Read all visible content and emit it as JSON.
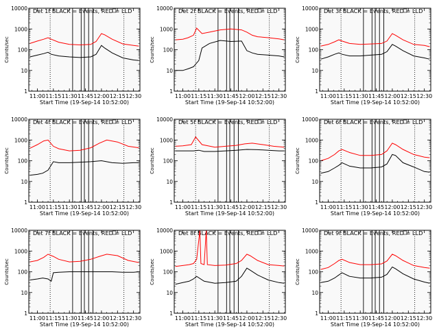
{
  "figure": {
    "ylabel": "Counts/sec",
    "xlabel": "Start Time (19-Sep-14 10:52:00)",
    "x_ticks": [
      "11:00",
      "11:15",
      "11:30",
      "11:45",
      "12:00",
      "12:15",
      "12:30"
    ],
    "y_ticks": [
      "1",
      "10",
      "100",
      "1000",
      "10000"
    ],
    "colors": {
      "events": "#000000",
      "lld": "#ff0000",
      "vlines": "#000000"
    }
  },
  "chart_data": [
    {
      "type": "line",
      "title": "Det 1f BLACK = Events, RED = LLD",
      "xlabel": "Start Time (19-Sep-14 10:52:00)",
      "ylabel": "Counts/sec",
      "x_range": [
        "10:52",
        "12:36"
      ],
      "ylim": [
        1,
        10000
      ],
      "log_y": true,
      "grid": false,
      "vertical_lines_solid": [
        "11:33",
        "11:41",
        "11:44",
        "11:48",
        "11:52"
      ],
      "vertical_lines_dotted": [
        "11:12",
        "12:21"
      ],
      "series": [
        {
          "name": "Events",
          "x": [
            "10:53",
            "11:00",
            "11:06",
            "11:10",
            "11:13",
            "11:20",
            "11:30",
            "11:40",
            "11:50",
            "11:55",
            "12:00",
            "12:03",
            "12:10",
            "12:20",
            "12:30",
            "12:35"
          ],
          "values": [
            45,
            55,
            65,
            75,
            60,
            50,
            45,
            42,
            45,
            60,
            160,
            120,
            70,
            40,
            32,
            30
          ]
        },
        {
          "name": "LLD",
          "x": [
            "10:53",
            "11:00",
            "11:06",
            "11:10",
            "11:13",
            "11:20",
            "11:30",
            "11:40",
            "11:50",
            "11:55",
            "12:00",
            "12:03",
            "12:10",
            "12:20",
            "12:30",
            "12:35"
          ],
          "values": [
            200,
            260,
            320,
            380,
            320,
            230,
            180,
            170,
            180,
            250,
            600,
            520,
            320,
            190,
            160,
            150
          ]
        }
      ]
    },
    {
      "type": "line",
      "title": "Det 2f BLACK = Events, RED = LLD",
      "xlabel": "Start Time (19-Sep-14 10:52:00)",
      "ylabel": "Counts/sec",
      "x_range": [
        "10:52",
        "12:36"
      ],
      "ylim": [
        1,
        10000
      ],
      "log_y": true,
      "grid": false,
      "vertical_lines_solid": [
        "11:33",
        "11:41",
        "11:44",
        "11:48",
        "11:52"
      ],
      "vertical_lines_dotted": [
        "11:12",
        "12:21"
      ],
      "series": [
        {
          "name": "Events",
          "x": [
            "10:53",
            "11:00",
            "11:05",
            "11:10",
            "11:15",
            "11:18",
            "11:25",
            "11:35",
            "11:45",
            "11:55",
            "12:00",
            "12:05",
            "12:10",
            "12:20",
            "12:30",
            "12:35"
          ],
          "values": [
            10,
            10,
            12,
            15,
            30,
            120,
            200,
            280,
            250,
            260,
            90,
            70,
            60,
            55,
            50,
            45
          ]
        },
        {
          "name": "LLD",
          "x": [
            "10:53",
            "11:00",
            "11:05",
            "11:10",
            "11:13",
            "11:18",
            "11:25",
            "11:35",
            "11:45",
            "11:55",
            "12:00",
            "12:05",
            "12:10",
            "12:20",
            "12:30",
            "12:35"
          ],
          "values": [
            300,
            320,
            380,
            500,
            1100,
            600,
            700,
            900,
            1000,
            900,
            700,
            500,
            420,
            380,
            330,
            300
          ]
        }
      ]
    },
    {
      "type": "line",
      "title": "Det 3f BLACK = Events, RED = LLD",
      "xlabel": "Start Time (19-Sep-14 10:52:00)",
      "ylabel": "Counts/sec",
      "x_range": [
        "10:52",
        "12:36"
      ],
      "ylim": [
        1,
        10000
      ],
      "log_y": true,
      "grid": false,
      "vertical_lines_solid": [
        "11:33",
        "11:41",
        "11:44",
        "11:48",
        "11:52"
      ],
      "vertical_lines_dotted": [
        "11:12",
        "12:21"
      ],
      "series": [
        {
          "name": "Events",
          "x": [
            "10:53",
            "11:00",
            "11:06",
            "11:10",
            "11:13",
            "11:20",
            "11:30",
            "11:40",
            "11:50",
            "11:55",
            "12:00",
            "12:03",
            "12:10",
            "12:20",
            "12:30",
            "12:35"
          ],
          "values": [
            35,
            45,
            60,
            70,
            60,
            50,
            50,
            55,
            60,
            80,
            180,
            150,
            90,
            50,
            40,
            35
          ]
        },
        {
          "name": "LLD",
          "x": [
            "10:53",
            "11:00",
            "11:06",
            "11:10",
            "11:13",
            "11:20",
            "11:30",
            "11:40",
            "11:50",
            "11:55",
            "12:00",
            "12:03",
            "12:10",
            "12:20",
            "12:30",
            "12:35"
          ],
          "values": [
            150,
            180,
            240,
            300,
            260,
            200,
            180,
            190,
            200,
            260,
            600,
            500,
            300,
            180,
            160,
            140
          ]
        }
      ]
    },
    {
      "type": "line",
      "title": "Det 4f BLACK = Events, RED = LLD",
      "xlabel": "Start Time (19-Sep-14 10:52:00)",
      "ylabel": "Counts/sec",
      "x_range": [
        "10:52",
        "12:36"
      ],
      "ylim": [
        1,
        10000
      ],
      "log_y": true,
      "grid": false,
      "vertical_lines_solid": [
        "11:33",
        "11:41",
        "11:44",
        "11:48",
        "11:52"
      ],
      "vertical_lines_dotted": [
        "11:12",
        "12:21"
      ],
      "series": [
        {
          "name": "Events",
          "x": [
            "10:53",
            "11:00",
            "11:05",
            "11:10",
            "11:15",
            "11:20",
            "11:30",
            "11:40",
            "11:50",
            "12:00",
            "12:10",
            "12:20",
            "12:30",
            "12:35"
          ],
          "values": [
            20,
            22,
            25,
            35,
            90,
            80,
            80,
            85,
            90,
            100,
            80,
            75,
            80,
            80
          ]
        },
        {
          "name": "LLD",
          "x": [
            "10:53",
            "11:00",
            "11:06",
            "11:10",
            "11:15",
            "11:20",
            "11:30",
            "11:40",
            "11:50",
            "11:58",
            "12:05",
            "12:15",
            "12:25",
            "12:35"
          ],
          "values": [
            400,
            600,
            900,
            1000,
            500,
            380,
            300,
            320,
            420,
            700,
            1000,
            800,
            500,
            420
          ]
        }
      ]
    },
    {
      "type": "line",
      "title": "Det 5f BLACK = Events, RED = LLD",
      "xlabel": "Start Time (19-Sep-14 10:52:00)",
      "ylabel": "Counts/sec",
      "x_range": [
        "10:52",
        "12:36"
      ],
      "ylim": [
        1,
        10000
      ],
      "log_y": true,
      "grid": false,
      "vertical_lines_solid": [
        "11:33",
        "11:41",
        "11:44",
        "11:48",
        "11:52"
      ],
      "vertical_lines_dotted": [
        "11:12",
        "12:21"
      ],
      "series": [
        {
          "name": "Events",
          "x": [
            "10:53",
            "11:00",
            "11:10",
            "11:15",
            "11:20",
            "11:30",
            "11:40",
            "11:50",
            "12:00",
            "12:10",
            "12:20",
            "12:30",
            "12:35"
          ],
          "values": [
            300,
            300,
            300,
            320,
            280,
            280,
            300,
            320,
            350,
            340,
            320,
            300,
            300
          ]
        },
        {
          "name": "LLD",
          "x": [
            "10:53",
            "11:00",
            "11:08",
            "11:12",
            "11:18",
            "11:30",
            "11:40",
            "11:50",
            "11:58",
            "12:05",
            "12:15",
            "12:25",
            "12:35"
          ],
          "values": [
            500,
            520,
            600,
            1400,
            600,
            450,
            500,
            550,
            650,
            700,
            600,
            500,
            450
          ]
        }
      ]
    },
    {
      "type": "line",
      "title": "Det 6f BLACK = Events, RED = LLD",
      "xlabel": "Start Time (19-Sep-14 10:52:00)",
      "ylabel": "Counts/sec",
      "x_range": [
        "10:52",
        "12:36"
      ],
      "ylim": [
        1,
        10000
      ],
      "log_y": true,
      "grid": false,
      "vertical_lines_solid": [
        "11:33",
        "11:41",
        "11:44",
        "11:48",
        "11:52"
      ],
      "vertical_lines_dotted": [
        "11:12",
        "12:21"
      ],
      "series": [
        {
          "name": "Events",
          "x": [
            "10:53",
            "11:00",
            "11:06",
            "11:10",
            "11:13",
            "11:20",
            "11:30",
            "11:40",
            "11:50",
            "11:55",
            "12:00",
            "12:03",
            "12:10",
            "12:20",
            "12:30",
            "12:35"
          ],
          "values": [
            25,
            30,
            45,
            60,
            80,
            55,
            45,
            45,
            50,
            70,
            200,
            180,
            80,
            50,
            30,
            28
          ]
        },
        {
          "name": "LLD",
          "x": [
            "10:53",
            "11:00",
            "11:06",
            "11:10",
            "11:13",
            "11:20",
            "11:30",
            "11:40",
            "11:50",
            "11:55",
            "12:00",
            "12:03",
            "12:10",
            "12:20",
            "12:30",
            "12:35"
          ],
          "values": [
            100,
            130,
            200,
            300,
            350,
            250,
            180,
            180,
            200,
            300,
            700,
            600,
            350,
            200,
            150,
            140
          ]
        }
      ]
    },
    {
      "type": "line",
      "title": "Det 7f BLACK = Events, RED = LLD",
      "xlabel": "Start Time (19-Sep-14 10:52:00)",
      "ylabel": "Counts/sec",
      "x_range": [
        "10:52",
        "12:36"
      ],
      "ylim": [
        1,
        10000
      ],
      "log_y": true,
      "grid": false,
      "vertical_lines_solid": [
        "11:33",
        "11:41",
        "11:44",
        "11:48",
        "11:52"
      ],
      "vertical_lines_dotted": [
        "11:12",
        "12:21"
      ],
      "series": [
        {
          "name": "Events",
          "x": [
            "10:53",
            "11:00",
            "11:05",
            "11:10",
            "11:13",
            "11:15",
            "11:20",
            "11:30",
            "11:40",
            "11:50",
            "12:00",
            "12:10",
            "12:20",
            "12:30",
            "12:35"
          ],
          "values": [
            40,
            45,
            50,
            45,
            35,
            90,
            95,
            100,
            100,
            100,
            100,
            100,
            95,
            95,
            100
          ]
        },
        {
          "name": "LLD",
          "x": [
            "10:53",
            "11:00",
            "11:06",
            "11:10",
            "11:15",
            "11:20",
            "11:30",
            "11:40",
            "11:50",
            "11:58",
            "12:05",
            "12:15",
            "12:25",
            "12:35"
          ],
          "values": [
            300,
            350,
            500,
            700,
            550,
            400,
            300,
            320,
            400,
            550,
            700,
            600,
            350,
            280
          ]
        }
      ]
    },
    {
      "type": "line",
      "title": "Det 8f BLACK = Events, RED = LLD",
      "xlabel": "Start Time (19-Sep-14 10:52:00)",
      "ylabel": "Counts/sec",
      "x_range": [
        "10:52",
        "12:36"
      ],
      "ylim": [
        1,
        10000
      ],
      "log_y": true,
      "grid": false,
      "vertical_lines_solid": [
        "11:33",
        "11:41",
        "11:44",
        "11:48",
        "11:52"
      ],
      "vertical_lines_dotted": [
        "11:12",
        "12:21"
      ],
      "series": [
        {
          "name": "Events",
          "x": [
            "10:53",
            "11:00",
            "11:06",
            "11:10",
            "11:13",
            "11:20",
            "11:30",
            "11:40",
            "11:50",
            "11:55",
            "12:00",
            "12:03",
            "12:10",
            "12:20",
            "12:30",
            "12:35"
          ],
          "values": [
            25,
            30,
            35,
            45,
            60,
            35,
            28,
            30,
            35,
            60,
            150,
            120,
            70,
            40,
            30,
            28
          ]
        },
        {
          "name": "LLD",
          "x": [
            "10:53",
            "11:00",
            "11:06",
            "11:10",
            "11:13",
            "11:16",
            "11:17",
            "11:20",
            "11:22",
            "11:23",
            "11:30",
            "11:40",
            "11:50",
            "11:55",
            "12:00",
            "12:03",
            "12:10",
            "12:20",
            "12:30",
            "12:35"
          ],
          "values": [
            180,
            200,
            220,
            250,
            400,
            10000,
            250,
            220,
            10000,
            220,
            200,
            210,
            250,
            350,
            700,
            600,
            350,
            220,
            200,
            190
          ]
        }
      ]
    },
    {
      "type": "line",
      "title": "Det 9f BLACK = Events, RED = LLD",
      "xlabel": "Start Time (19-Sep-14 10:52:00)",
      "ylabel": "Counts/sec",
      "x_range": [
        "10:52",
        "12:36"
      ],
      "ylim": [
        1,
        10000
      ],
      "log_y": true,
      "grid": false,
      "vertical_lines_solid": [
        "11:33",
        "11:41",
        "11:44",
        "11:48",
        "11:52"
      ],
      "vertical_lines_dotted": [
        "11:12",
        "12:21"
      ],
      "series": [
        {
          "name": "Events",
          "x": [
            "10:53",
            "11:00",
            "11:06",
            "11:10",
            "11:13",
            "11:20",
            "11:30",
            "11:40",
            "11:50",
            "11:55",
            "12:00",
            "12:03",
            "12:10",
            "12:20",
            "12:30",
            "12:35"
          ],
          "values": [
            30,
            35,
            50,
            70,
            90,
            60,
            50,
            50,
            55,
            75,
            170,
            140,
            80,
            45,
            32,
            28
          ]
        },
        {
          "name": "LLD",
          "x": [
            "10:53",
            "11:00",
            "11:06",
            "11:10",
            "11:13",
            "11:20",
            "11:30",
            "11:40",
            "11:50",
            "11:55",
            "12:00",
            "12:03",
            "12:10",
            "12:20",
            "12:30",
            "12:35"
          ],
          "values": [
            130,
            160,
            250,
            350,
            400,
            280,
            220,
            220,
            240,
            330,
            700,
            600,
            350,
            200,
            160,
            150
          ]
        }
      ]
    }
  ]
}
